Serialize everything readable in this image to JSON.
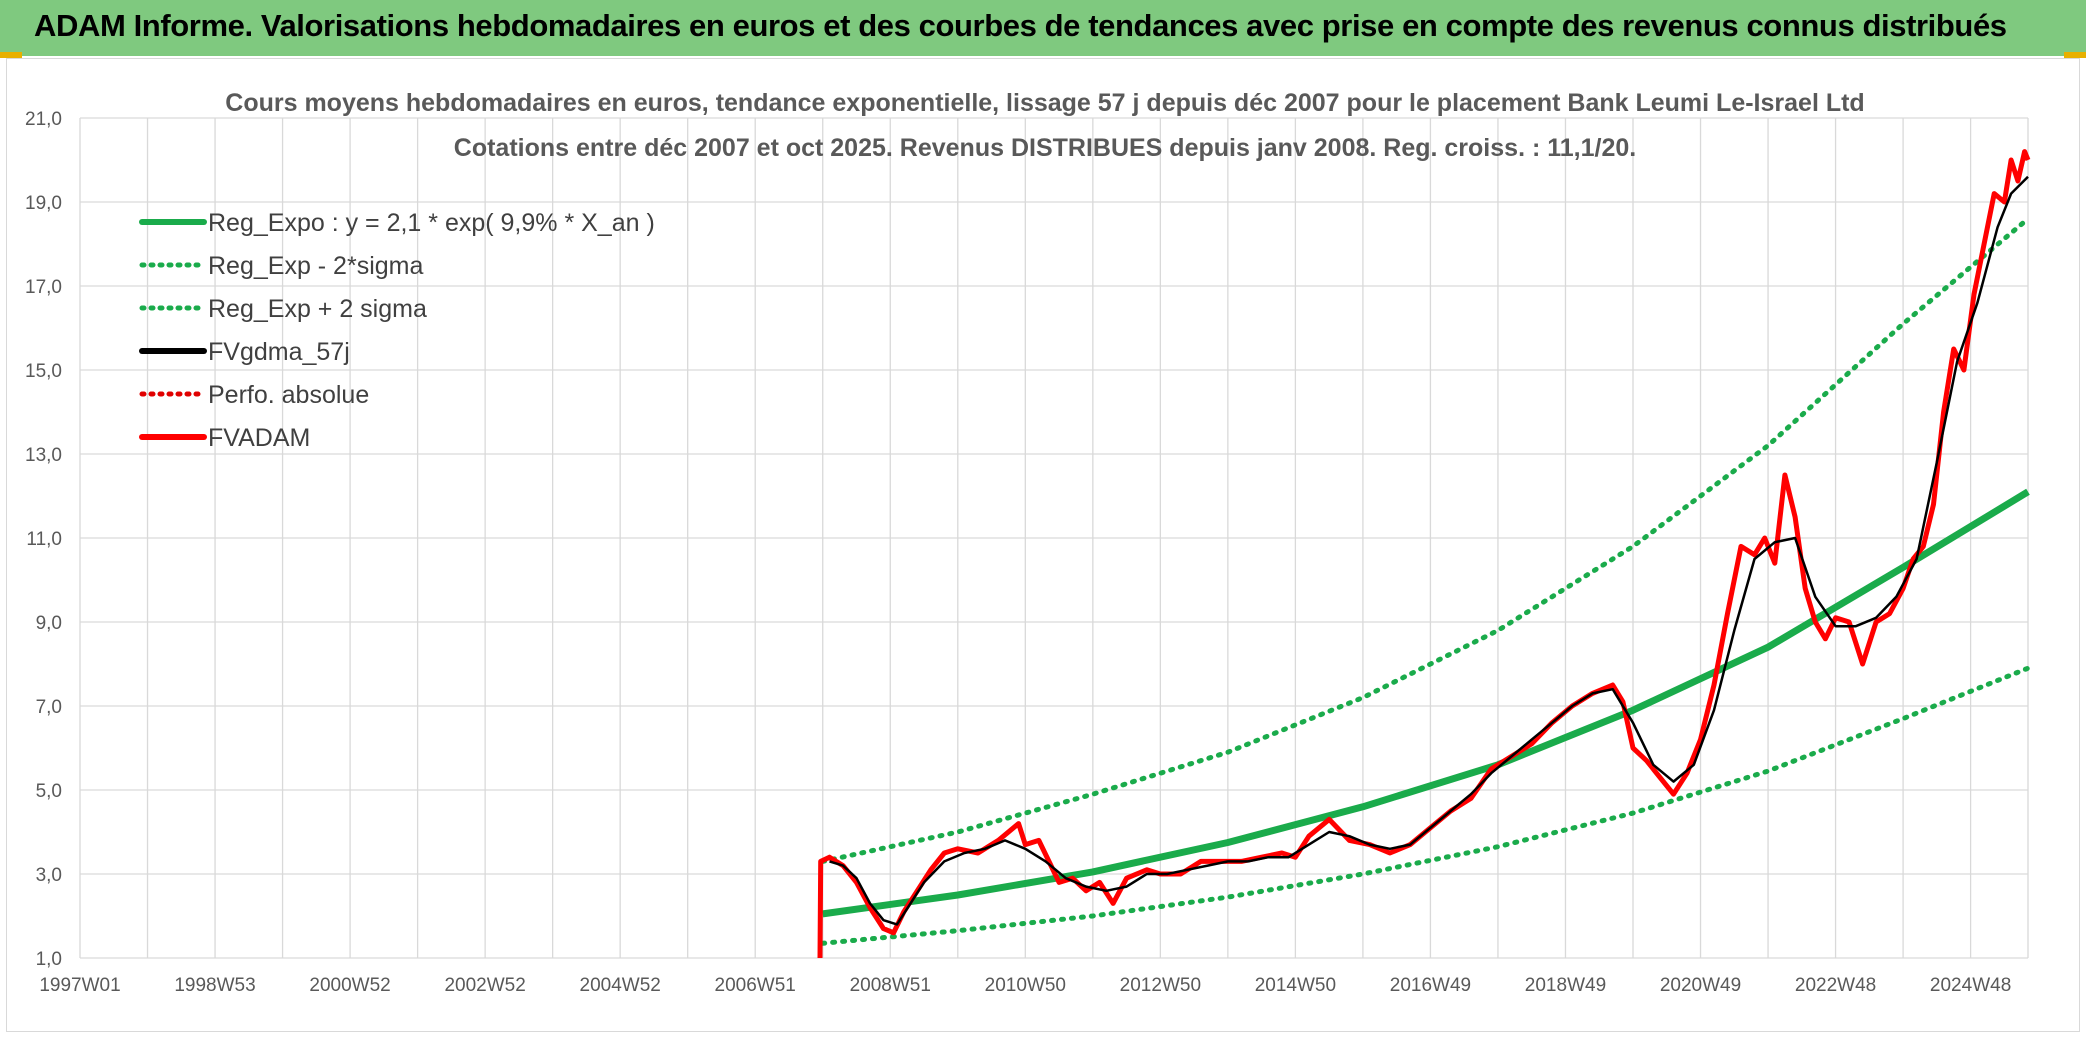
{
  "header": {
    "title": "ADAM Informe. Valorisations hebdomadaires en euros et des courbes de tendances avec prise en compte des revenus connus distribués"
  },
  "colors": {
    "header_band": "#7fc97f",
    "reg_expo": "#1aab4b",
    "sigma": "#1aab4b",
    "fvgdma": "#000000",
    "perfo": "#e00000",
    "fvadam": "#ff0000",
    "grid": "#d9d9d9"
  },
  "chart_data": {
    "type": "line",
    "title": [
      "Cours moyens hebdomadaires en euros, tendance exponentielle, lissage 57 j depuis déc 2007 pour le placement Bank Leumi Le-Israel Ltd",
      "Cotations entre déc 2007 et oct 2025. Revenus DISTRIBUES depuis janv 2008. Reg. croiss. : 11,1/20."
    ],
    "xlabel": "",
    "ylabel": "",
    "x_tick_labels": [
      "1997W01",
      "1998W53",
      "2000W52",
      "2002W52",
      "2004W52",
      "2006W51",
      "2008W51",
      "2010W50",
      "2012W50",
      "2014W50",
      "2016W49",
      "2018W49",
      "2020W49",
      "2022W48",
      "2024W48"
    ],
    "x_range_years": [
      1997.0,
      2025.85
    ],
    "ylim": [
      1.0,
      21.0
    ],
    "y_ticks": [
      "1,0",
      "3,0",
      "5,0",
      "7,0",
      "9,0",
      "11,0",
      "13,0",
      "15,0",
      "17,0",
      "19,0",
      "21,0"
    ],
    "grid": true,
    "legend_position": "top-left",
    "legend": [
      {
        "key": "reg",
        "label": "Reg_Expo : y = 2,1 * exp( 9,9% *  X_an )",
        "style": "solid",
        "color": "#1aab4b"
      },
      {
        "key": "lo",
        "label": "Reg_Exp - 2*sigma",
        "style": "dotted",
        "color": "#1aab4b"
      },
      {
        "key": "hi",
        "label": "Reg_Exp + 2 sigma",
        "style": "dotted",
        "color": "#1aab4b"
      },
      {
        "key": "ma",
        "label": "FVgdma_57j",
        "style": "solid",
        "color": "#000000"
      },
      {
        "key": "perf",
        "label": "Perfo. absolue",
        "style": "dotted",
        "color": "#e00000"
      },
      {
        "key": "adam",
        "label": "FVADAM",
        "style": "solid",
        "color": "#ff0000"
      }
    ],
    "series": [
      {
        "key": "reg",
        "name": "Reg_Expo : y = 2,1 * exp( 9,9% *  X_an )",
        "x": [
          2008.0,
          2010.0,
          2012.0,
          2014.0,
          2016.0,
          2018.0,
          2020.0,
          2022.0,
          2024.0,
          2025.85
        ],
        "y": [
          2.05,
          2.5,
          3.05,
          3.75,
          4.6,
          5.6,
          6.9,
          8.4,
          10.3,
          12.1
        ]
      },
      {
        "key": "hi",
        "name": "Reg_Exp + 2 sigma",
        "x": [
          2008.0,
          2010.0,
          2012.0,
          2014.0,
          2016.0,
          2018.0,
          2020.0,
          2022.0,
          2024.0,
          2025.85
        ],
        "y": [
          3.3,
          4.0,
          4.9,
          5.9,
          7.2,
          8.8,
          10.8,
          13.2,
          16.1,
          18.6
        ]
      },
      {
        "key": "lo",
        "name": "Reg_Exp - 2*sigma",
        "x": [
          2008.0,
          2010.0,
          2012.0,
          2014.0,
          2016.0,
          2018.0,
          2020.0,
          2022.0,
          2024.0,
          2025.85
        ],
        "y": [
          1.35,
          1.65,
          2.0,
          2.45,
          3.0,
          3.65,
          4.45,
          5.45,
          6.7,
          7.9
        ]
      },
      {
        "key": "adam",
        "name": "FVADAM",
        "x": [
          2007.96,
          2007.97,
          2008.1,
          2008.3,
          2008.5,
          2008.7,
          2008.9,
          2009.05,
          2009.2,
          2009.4,
          2009.6,
          2009.8,
          2010.0,
          2010.3,
          2010.6,
          2010.9,
          2011.0,
          2011.2,
          2011.5,
          2011.7,
          2011.9,
          2012.1,
          2012.3,
          2012.5,
          2012.8,
          2013.0,
          2013.3,
          2013.6,
          2013.9,
          2014.2,
          2014.5,
          2014.8,
          2015.0,
          2015.2,
          2015.5,
          2015.8,
          2016.1,
          2016.4,
          2016.7,
          2017.0,
          2017.3,
          2017.6,
          2017.9,
          2018.2,
          2018.5,
          2018.8,
          2019.1,
          2019.4,
          2019.7,
          2019.85,
          2020.0,
          2020.2,
          2020.4,
          2020.6,
          2020.8,
          2021.0,
          2021.2,
          2021.4,
          2021.6,
          2021.8,
          2021.95,
          2022.1,
          2022.25,
          2022.4,
          2022.55,
          2022.7,
          2022.85,
          2023.0,
          2023.2,
          2023.4,
          2023.6,
          2023.8,
          2024.0,
          2024.15,
          2024.3,
          2024.45,
          2024.6,
          2024.75,
          2024.9,
          2025.05,
          2025.2,
          2025.35,
          2025.5,
          2025.6,
          2025.7,
          2025.8,
          2025.85
        ],
        "y": [
          1.0,
          3.3,
          3.4,
          3.2,
          2.8,
          2.2,
          1.7,
          1.6,
          2.1,
          2.6,
          3.1,
          3.5,
          3.6,
          3.5,
          3.8,
          4.2,
          3.7,
          3.8,
          2.8,
          2.9,
          2.6,
          2.8,
          2.3,
          2.9,
          3.1,
          3.0,
          3.0,
          3.3,
          3.3,
          3.3,
          3.4,
          3.5,
          3.4,
          3.9,
          4.3,
          3.8,
          3.7,
          3.5,
          3.7,
          4.1,
          4.5,
          4.8,
          5.5,
          5.8,
          6.1,
          6.6,
          7.0,
          7.3,
          7.5,
          7.1,
          6.0,
          5.7,
          5.3,
          4.9,
          5.4,
          6.2,
          7.5,
          9.2,
          10.8,
          10.6,
          11.0,
          10.4,
          12.5,
          11.5,
          9.8,
          9.0,
          8.6,
          9.1,
          9.0,
          8.0,
          9.0,
          9.2,
          9.8,
          10.5,
          10.8,
          11.8,
          14.0,
          15.5,
          15.0,
          16.8,
          18.0,
          19.2,
          19.0,
          20.0,
          19.5,
          20.2,
          20.0
        ]
      },
      {
        "key": "ma",
        "name": "FVgdma_57j",
        "x": [
          2008.1,
          2008.3,
          2008.5,
          2008.7,
          2008.9,
          2009.1,
          2009.3,
          2009.5,
          2009.8,
          2010.1,
          2010.4,
          2010.7,
          2011.0,
          2011.3,
          2011.6,
          2011.9,
          2012.2,
          2012.5,
          2012.8,
          2013.1,
          2013.4,
          2013.7,
          2014.0,
          2014.3,
          2014.6,
          2014.9,
          2015.2,
          2015.5,
          2015.8,
          2016.1,
          2016.4,
          2016.7,
          2017.0,
          2017.3,
          2017.6,
          2017.9,
          2018.2,
          2018.5,
          2018.8,
          2019.1,
          2019.4,
          2019.7,
          2020.0,
          2020.3,
          2020.6,
          2020.9,
          2021.2,
          2021.5,
          2021.8,
          2022.1,
          2022.4,
          2022.7,
          2023.0,
          2023.3,
          2023.6,
          2023.9,
          2024.2,
          2024.5,
          2024.8,
          2025.1,
          2025.4,
          2025.6,
          2025.85
        ],
        "y": [
          3.3,
          3.2,
          2.9,
          2.3,
          1.9,
          1.8,
          2.3,
          2.8,
          3.3,
          3.5,
          3.6,
          3.8,
          3.6,
          3.3,
          2.9,
          2.7,
          2.6,
          2.7,
          3.0,
          3.0,
          3.1,
          3.2,
          3.3,
          3.3,
          3.4,
          3.4,
          3.7,
          4.0,
          3.9,
          3.7,
          3.6,
          3.7,
          4.1,
          4.5,
          4.9,
          5.4,
          5.8,
          6.2,
          6.6,
          7.0,
          7.3,
          7.4,
          6.6,
          5.6,
          5.2,
          5.6,
          6.9,
          8.8,
          10.5,
          10.9,
          11.0,
          9.6,
          8.9,
          8.9,
          9.1,
          9.6,
          10.5,
          12.8,
          15.2,
          16.6,
          18.4,
          19.2,
          19.6
        ]
      }
    ]
  }
}
